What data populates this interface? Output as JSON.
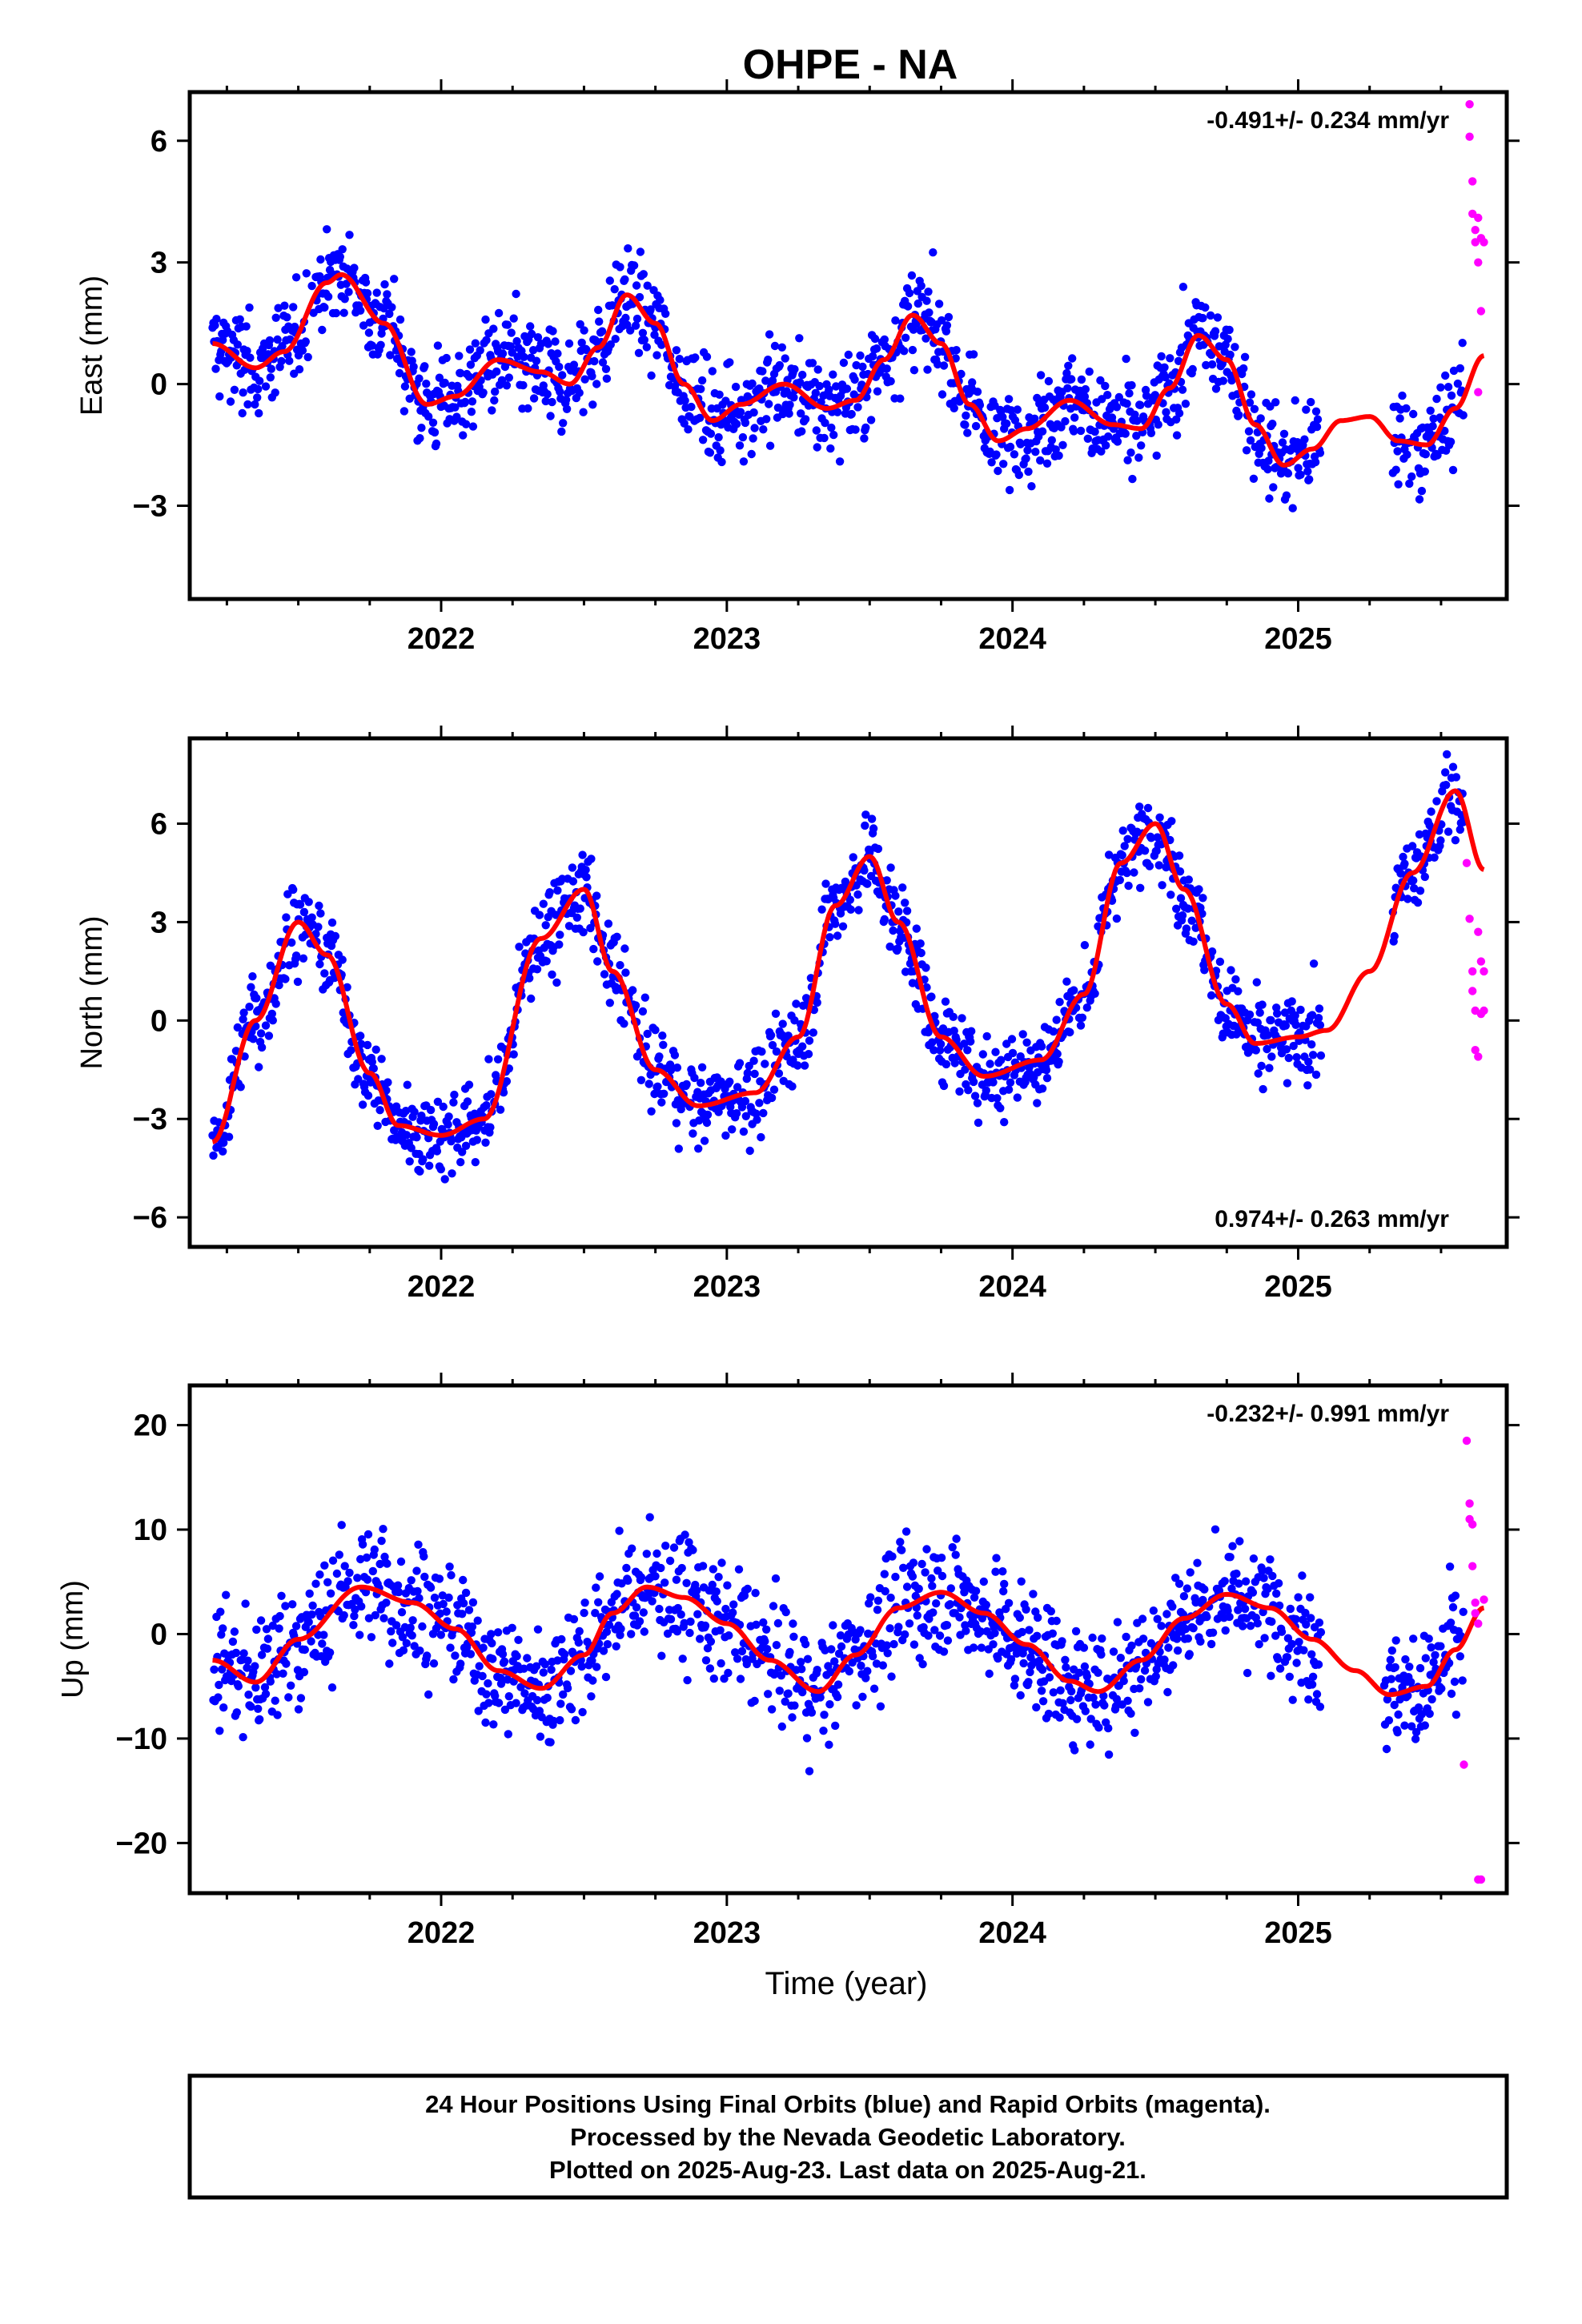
{
  "title": "OHPE - NA",
  "x_axis_label": "Time (year)",
  "caption": [
    "24 Hour Positions Using Final Orbits (blue) and Rapid Orbits (magenta).",
    "Processed by the Nevada Geodetic Laboratory.",
    "Plotted on 2025-Aug-23. Last data on 2025-Aug-21."
  ],
  "colors": {
    "final": "#0000ff",
    "rapid": "#ff00ff",
    "model": "#ff0000",
    "frame": "#000000"
  },
  "chart_data": [
    {
      "type": "scatter",
      "component": "East",
      "ylabel": "East (mm)",
      "rate_label": "-0.491+/- 0.234 mm/yr",
      "rate_position": "top-right",
      "xlim": [
        2021.12,
        2025.73
      ],
      "ylim": [
        -5.3,
        7.2
      ],
      "xticks": [
        2022,
        2023,
        2024,
        2025
      ],
      "yticks": [
        -3,
        0,
        3,
        6
      ],
      "model": {
        "x": [
          2021.2,
          2021.35,
          2021.45,
          2021.6,
          2021.65,
          2021.8,
          2021.95,
          2022.05,
          2022.2,
          2022.35,
          2022.45,
          2022.55,
          2022.65,
          2022.75,
          2022.85,
          2022.95,
          2023.05,
          2023.2,
          2023.35,
          2023.45,
          2023.55,
          2023.65,
          2023.75,
          2023.85,
          2023.95,
          2024.05,
          2024.2,
          2024.35,
          2024.45,
          2024.55,
          2024.65,
          2024.75,
          2024.85,
          2024.95,
          2025.05,
          2025.15,
          2025.25,
          2025.35,
          2025.45,
          2025.55,
          2025.65
        ],
        "values": [
          1.0,
          0.4,
          0.8,
          2.5,
          2.7,
          1.5,
          -0.5,
          -0.3,
          0.6,
          0.3,
          0.0,
          0.9,
          2.2,
          1.5,
          0.0,
          -0.9,
          -0.5,
          0.0,
          -0.6,
          -0.4,
          0.6,
          1.7,
          1.0,
          -0.5,
          -1.4,
          -1.1,
          -0.4,
          -1.0,
          -1.1,
          -0.1,
          1.2,
          0.6,
          -1.0,
          -2.0,
          -1.6,
          -0.9,
          -0.8,
          -1.4,
          -1.5,
          -0.6,
          0.7
        ]
      },
      "final_points": {
        "generator": "dense daily series; seasonal model plus ~0.8 mm scatter",
        "x_range": [
          2021.2,
          2025.58
        ],
        "gap": [
          2025.08,
          2025.33
        ]
      },
      "rapid_points": {
        "x": [
          2025.6,
          2025.6,
          2025.61,
          2025.61,
          2025.62,
          2025.62,
          2025.63,
          2025.63,
          2025.63,
          2025.64,
          2025.64,
          2025.65
        ],
        "values": [
          6.9,
          6.1,
          5.0,
          4.2,
          3.8,
          3.5,
          3.0,
          4.1,
          -0.2,
          1.8,
          3.6,
          3.5
        ]
      }
    },
    {
      "type": "scatter",
      "component": "North",
      "ylabel": "North (mm)",
      "rate_label": "0.974+/- 0.263 mm/yr",
      "rate_position": "bottom-right",
      "xlim": [
        2021.12,
        2025.73
      ],
      "ylim": [
        -6.9,
        8.6
      ],
      "xticks": [
        2022,
        2023,
        2024,
        2025
      ],
      "yticks": [
        -6,
        -3,
        0,
        3,
        6
      ],
      "model": {
        "x": [
          2021.2,
          2021.35,
          2021.5,
          2021.6,
          2021.75,
          2021.85,
          2022.0,
          2022.15,
          2022.35,
          2022.5,
          2022.6,
          2022.75,
          2022.9,
          2023.1,
          2023.25,
          2023.38,
          2023.5,
          2023.6,
          2023.75,
          2023.9,
          2024.1,
          2024.25,
          2024.38,
          2024.5,
          2024.6,
          2024.75,
          2024.85,
          2025.0,
          2025.1,
          2025.25,
          2025.4,
          2025.55,
          2025.65
        ],
        "values": [
          -3.7,
          0.0,
          3.0,
          2.0,
          -1.6,
          -3.2,
          -3.5,
          -3.0,
          2.5,
          4.0,
          1.5,
          -1.5,
          -2.6,
          -2.2,
          -0.5,
          3.5,
          5.0,
          3.0,
          -0.5,
          -1.7,
          -1.2,
          0.8,
          4.8,
          6.0,
          4.0,
          0.5,
          -0.7,
          -0.5,
          -0.3,
          1.5,
          4.5,
          7.0,
          4.6
        ]
      },
      "final_points": {
        "generator": "dense daily series; seasonal model plus ~0.9 mm scatter",
        "x_range": [
          2021.2,
          2025.58
        ],
        "gap": [
          2025.08,
          2025.33
        ]
      },
      "rapid_points": {
        "x": [
          2025.59,
          2025.6,
          2025.61,
          2025.61,
          2025.62,
          2025.62,
          2025.63,
          2025.63,
          2025.64,
          2025.64,
          2025.65,
          2025.65
        ],
        "values": [
          4.8,
          3.1,
          1.5,
          0.9,
          0.3,
          -0.9,
          -1.1,
          2.7,
          1.8,
          0.2,
          0.3,
          1.5
        ]
      }
    },
    {
      "type": "scatter",
      "component": "Up",
      "ylabel": "Up (mm)",
      "rate_label": "-0.232+/- 0.991 mm/yr",
      "rate_position": "top-right",
      "xlim": [
        2021.12,
        2025.73
      ],
      "ylim": [
        -24.8,
        23.8
      ],
      "xticks": [
        2022,
        2023,
        2024,
        2025
      ],
      "yticks": [
        -20,
        -10,
        0,
        10,
        20
      ],
      "model": {
        "x": [
          2021.2,
          2021.35,
          2021.5,
          2021.72,
          2021.9,
          2022.05,
          2022.2,
          2022.35,
          2022.5,
          2022.6,
          2022.72,
          2022.85,
          2023.0,
          2023.15,
          2023.32,
          2023.45,
          2023.6,
          2023.75,
          2023.9,
          2024.05,
          2024.2,
          2024.3,
          2024.45,
          2024.6,
          2024.75,
          2024.9,
          2025.05,
          2025.2,
          2025.32,
          2025.45,
          2025.55,
          2025.65
        ],
        "values": [
          -2.5,
          -4.6,
          -0.5,
          4.5,
          3.0,
          0.5,
          -3.5,
          -5.2,
          -2.0,
          2.0,
          4.5,
          3.5,
          1.0,
          -2.5,
          -5.5,
          -2.0,
          2.5,
          4.0,
          2.0,
          -1.0,
          -4.5,
          -5.5,
          -2.5,
          1.5,
          3.8,
          2.5,
          -0.5,
          -3.5,
          -5.8,
          -5.0,
          -1.5,
          2.5
        ]
      },
      "final_points": {
        "generator": "dense daily series; seasonal model plus ~4 mm scatter",
        "x_range": [
          2021.2,
          2025.58
        ],
        "gap": [
          2025.08,
          2025.3
        ]
      },
      "rapid_points": {
        "x": [
          2025.58,
          2025.59,
          2025.6,
          2025.6,
          2025.61,
          2025.61,
          2025.62,
          2025.62,
          2025.63,
          2025.63,
          2025.64,
          2025.65
        ],
        "values": [
          -12.5,
          18.5,
          12.5,
          11.0,
          10.5,
          6.5,
          3.0,
          2.0,
          1.0,
          -23.5,
          -23.5,
          3.3
        ]
      }
    }
  ]
}
